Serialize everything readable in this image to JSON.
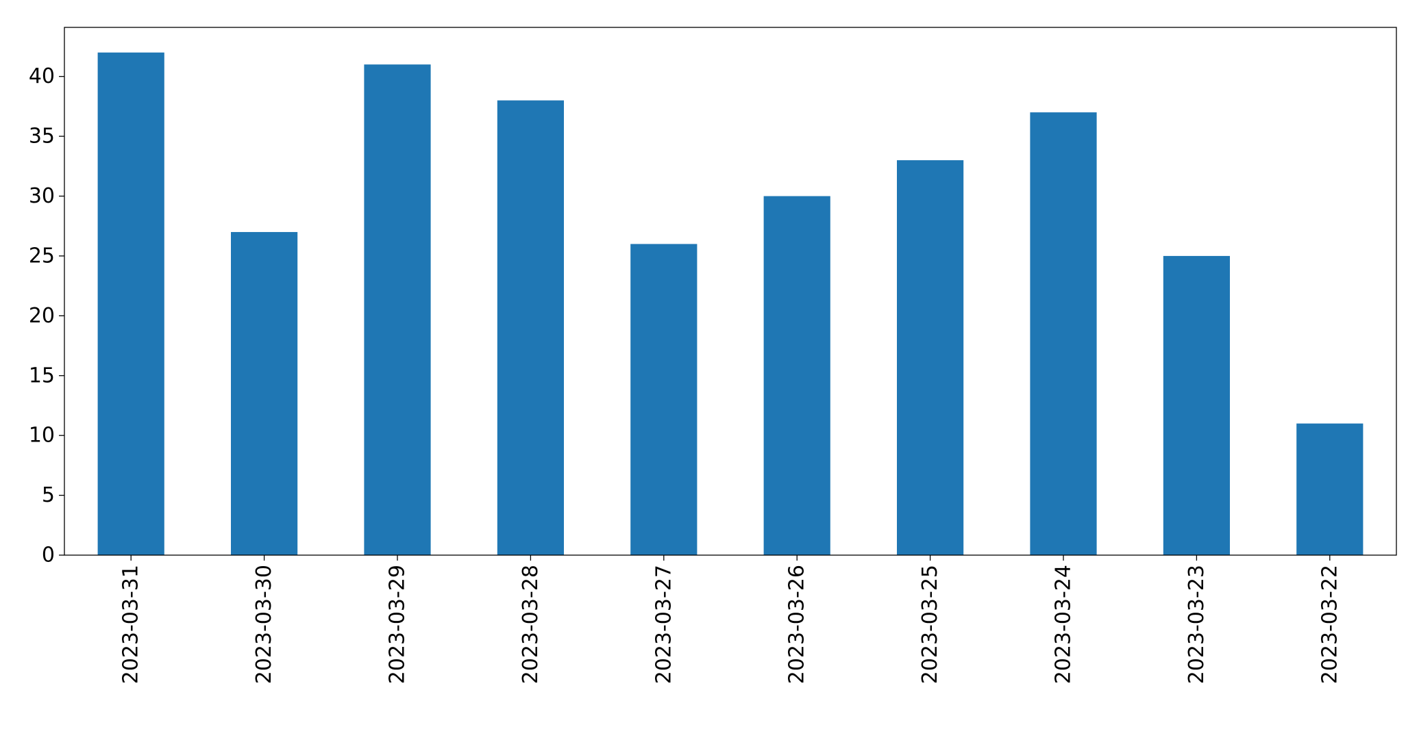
{
  "chart_data": {
    "type": "bar",
    "title": "",
    "xlabel": "",
    "ylabel": "",
    "categories": [
      "2023-03-31",
      "2023-03-30",
      "2023-03-29",
      "2023-03-28",
      "2023-03-27",
      "2023-03-26",
      "2023-03-25",
      "2023-03-24",
      "2023-03-23",
      "2023-03-22"
    ],
    "values": [
      42,
      27,
      41,
      38,
      26,
      30,
      33,
      37,
      25,
      11
    ],
    "ylim": [
      0,
      44.1
    ],
    "yticks": [
      0,
      5,
      10,
      15,
      20,
      25,
      30,
      35,
      40
    ],
    "x_tick_rotation": "vertical",
    "grid": false,
    "legend": "none",
    "bar_color": "#1f77b4"
  }
}
